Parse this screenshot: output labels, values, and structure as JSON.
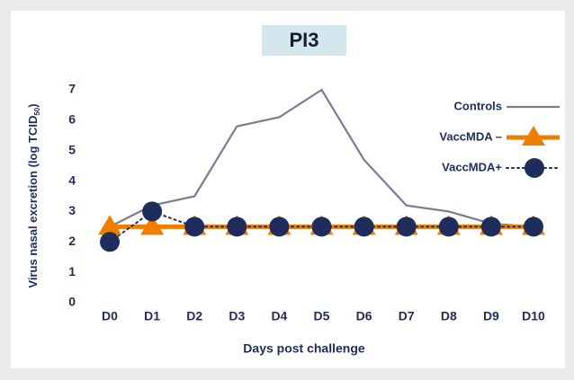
{
  "chart_data": {
    "type": "line",
    "title": "PI3",
    "x_label": "Days post challenge",
    "y_label": {
      "text": "Virus nasal excretion (log TCID",
      "subscript": "50",
      "suffix": ")"
    },
    "categories": [
      "D0",
      "D1",
      "D2",
      "D3",
      "D4",
      "D5",
      "D6",
      "D7",
      "D8",
      "D9",
      "D10"
    ],
    "series": [
      {
        "name": "Controls",
        "color": "#7d7a94",
        "marker": "none",
        "dash": "solid",
        "values": [
          2.5,
          3.2,
          3.5,
          5.8,
          6.1,
          7.0,
          4.7,
          3.2,
          3.0,
          2.6,
          2.5
        ]
      },
      {
        "name": "VaccMDA –",
        "color": "#f07d00",
        "marker": "triangle",
        "dash": "solid",
        "values": [
          2.5,
          2.5,
          2.5,
          2.5,
          2.5,
          2.5,
          2.5,
          2.5,
          2.5,
          2.5,
          2.5
        ]
      },
      {
        "name": "VaccMDA+",
        "color": "#1f2d5c",
        "marker": "circle",
        "dash": "dotted",
        "values": [
          2.0,
          3.0,
          2.5,
          2.5,
          2.5,
          2.5,
          2.5,
          2.5,
          2.5,
          2.5,
          2.5
        ]
      }
    ],
    "ylim": [
      0,
      7
    ],
    "yticks": [
      0,
      1,
      2,
      3,
      4,
      5,
      6,
      7
    ],
    "grid": false,
    "legend": "right"
  }
}
